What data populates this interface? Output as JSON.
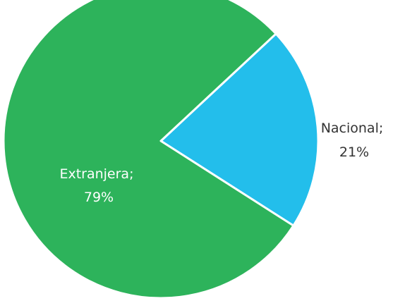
{
  "chart_data": {
    "type": "pie",
    "slices": [
      {
        "label": "Extranjera",
        "value_label": "79%",
        "value": 79,
        "color": "#2DB35B"
      },
      {
        "label": "Nacional",
        "value_label": "21%",
        "value": 21,
        "color": "#23BEEB"
      }
    ],
    "start_angle_deg": -43,
    "direction": "clockwise_from_top_right"
  }
}
